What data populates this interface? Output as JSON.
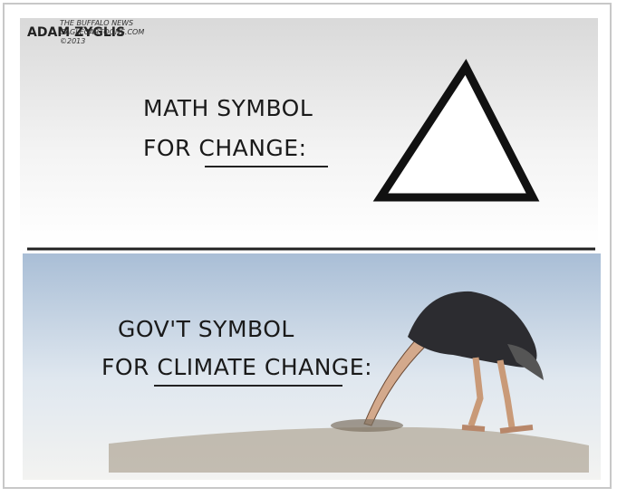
{
  "signature": {
    "artist": "ADAM ZYGLIS",
    "publisher": "THE BUFFALO NEWS",
    "site": "CAGLECARTOONS.COM",
    "copyright": "©2013"
  },
  "panels": [
    {
      "lines": [
        "MATH SYMBOL",
        "FOR CHANGE:"
      ]
    },
    {
      "lines": [
        "GOV'T SYMBOL",
        "FOR CLIMATE CHANGE:"
      ]
    }
  ]
}
